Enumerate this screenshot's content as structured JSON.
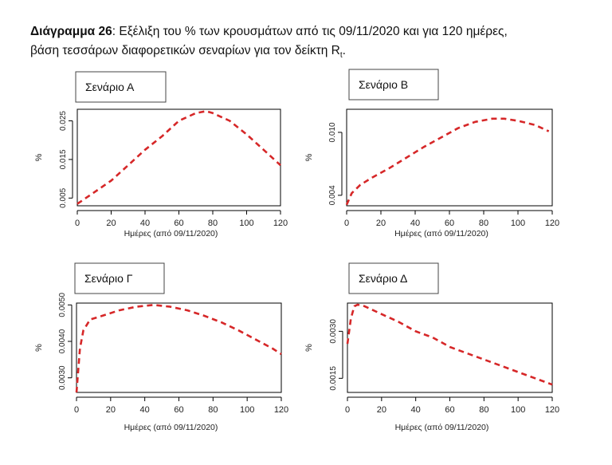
{
  "caption": {
    "bold": "Διάγραμμα 26",
    "line1": ": Εξέλιξη του % των κρουσμάτων από τις 09/11/2020 και για 120 ημέρες,",
    "line2": "βάση τεσσάρων διαφορετικών σεναρίων για τον δείκτη R",
    "line2_sub": "t",
    "line2_end": "."
  },
  "colors": {
    "curve": "#d62728",
    "axis": "#000000",
    "box_border": "#444444"
  },
  "chart_data": [
    {
      "type": "line",
      "title": "Σενάριο Α",
      "xlabel": "Ημέρες (από 09/11/2020)",
      "ylabel": "%",
      "xlim": [
        0,
        120
      ],
      "ylim": [
        0.003,
        0.028
      ],
      "xticks": [
        0,
        20,
        40,
        60,
        80,
        100,
        120
      ],
      "yticks": [
        0.005,
        0.015,
        0.025
      ],
      "ytick_labels": [
        "0.005",
        "0.015",
        "0.025"
      ],
      "line_style": "dashed",
      "x": [
        0,
        10,
        20,
        30,
        40,
        50,
        60,
        70,
        76,
        80,
        90,
        100,
        110,
        120
      ],
      "y": [
        0.0035,
        0.0065,
        0.0095,
        0.0135,
        0.0175,
        0.021,
        0.025,
        0.027,
        0.0275,
        0.027,
        0.025,
        0.0215,
        0.0175,
        0.0135
      ]
    },
    {
      "type": "line",
      "title": "Σενάριο Β",
      "xlabel": "Ημέρες (από 09/11/2020)",
      "ylabel": "%",
      "xlim": [
        0,
        120
      ],
      "ylim": [
        0.003,
        0.0122
      ],
      "xticks": [
        0,
        20,
        40,
        60,
        80,
        100,
        120
      ],
      "yticks": [
        0.004,
        0.01
      ],
      "ytick_labels": [
        "0.004",
        "0.010"
      ],
      "line_style": "dashed",
      "x": [
        0,
        3,
        8,
        15,
        25,
        35,
        45,
        55,
        65,
        75,
        85,
        92,
        100,
        110,
        118
      ],
      "y": [
        0.0031,
        0.0042,
        0.005,
        0.0057,
        0.0066,
        0.0076,
        0.0086,
        0.0095,
        0.0104,
        0.011,
        0.0113,
        0.0113,
        0.0111,
        0.0107,
        0.0101
      ]
    },
    {
      "type": "line",
      "title": "Σενάριο Γ",
      "xlabel": "Ημέρες (από 09/11/2020)",
      "ylabel": "%",
      "xlim": [
        0,
        120
      ],
      "ylim": [
        0.0026,
        0.00505
      ],
      "xticks": [
        0,
        20,
        40,
        60,
        80,
        100,
        120
      ],
      "yticks": [
        0.003,
        0.004,
        0.005
      ],
      "ytick_labels": [
        "0.0030",
        "0.0040",
        "0.0050"
      ],
      "line_style": "dashed",
      "x": [
        0,
        2,
        4,
        8,
        15,
        25,
        35,
        45,
        55,
        65,
        75,
        85,
        95,
        105,
        115,
        120
      ],
      "y": [
        0.0026,
        0.0038,
        0.0043,
        0.0046,
        0.0047,
        0.00485,
        0.00495,
        0.005,
        0.00495,
        0.00485,
        0.0047,
        0.00452,
        0.0043,
        0.00405,
        0.0038,
        0.00365
      ]
    },
    {
      "type": "line",
      "title": "Σενάριο Δ",
      "xlabel": "Ημέρες (από 09/11/2020)",
      "ylabel": "%",
      "xlim": [
        0,
        120
      ],
      "ylim": [
        0.00105,
        0.0039
      ],
      "xticks": [
        0,
        20,
        40,
        60,
        80,
        100,
        120
      ],
      "yticks": [
        0.0015,
        0.003
      ],
      "ytick_labels": [
        "0.0015",
        "0.0030"
      ],
      "line_style": "dashed",
      "x": [
        0,
        2,
        4,
        6,
        10,
        20,
        30,
        40,
        50,
        60,
        70,
        80,
        90,
        100,
        110,
        120
      ],
      "y": [
        0.0026,
        0.0034,
        0.0038,
        0.00385,
        0.0038,
        0.00355,
        0.0033,
        0.003,
        0.0028,
        0.0025,
        0.0023,
        0.0021,
        0.0019,
        0.0017,
        0.0015,
        0.0013
      ]
    }
  ]
}
